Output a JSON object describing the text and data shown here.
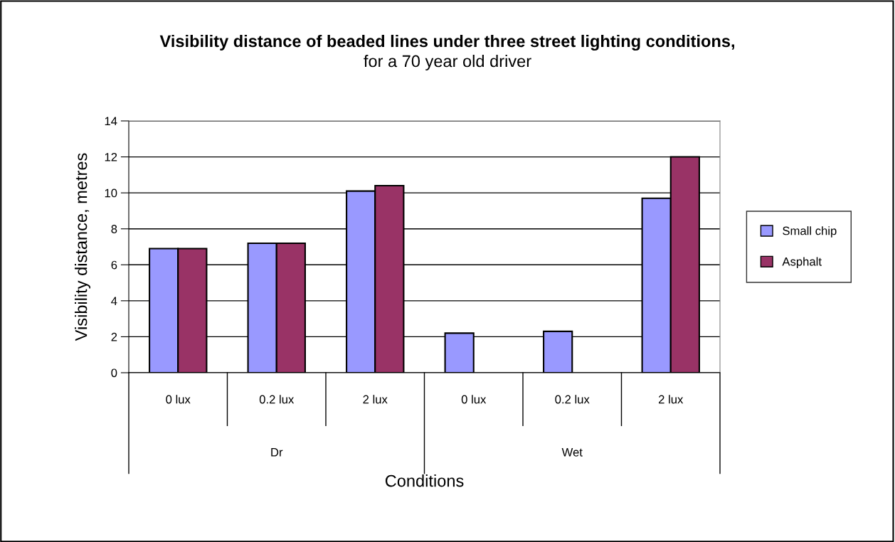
{
  "chart_data": {
    "type": "bar",
    "title": "Visibility distance of beaded lines under three street lighting conditions,",
    "subtitle": "for a 70 year old driver",
    "xlabel": "Conditions",
    "ylabel": "Visibility distance, metres",
    "categories": [
      "0 lux",
      "0.2 lux",
      "2 lux",
      "0 lux",
      "0.2 lux",
      "2 lux"
    ],
    "annotations": [
      "Dr",
      "Wet"
    ],
    "series": [
      {
        "name": "Small chip",
        "color": "#9999ff",
        "values": [
          6.9,
          7.2,
          10.1,
          2.2,
          2.3,
          9.7
        ]
      },
      {
        "name": "Asphalt",
        "color": "#993366",
        "values": [
          6.9,
          7.2,
          10.4,
          null,
          null,
          12.0
        ]
      }
    ],
    "ylim": [
      0,
      14
    ],
    "yticks": [
      0,
      2,
      4,
      6,
      8,
      10,
      12,
      14
    ],
    "grid": "y",
    "legend": "right"
  }
}
